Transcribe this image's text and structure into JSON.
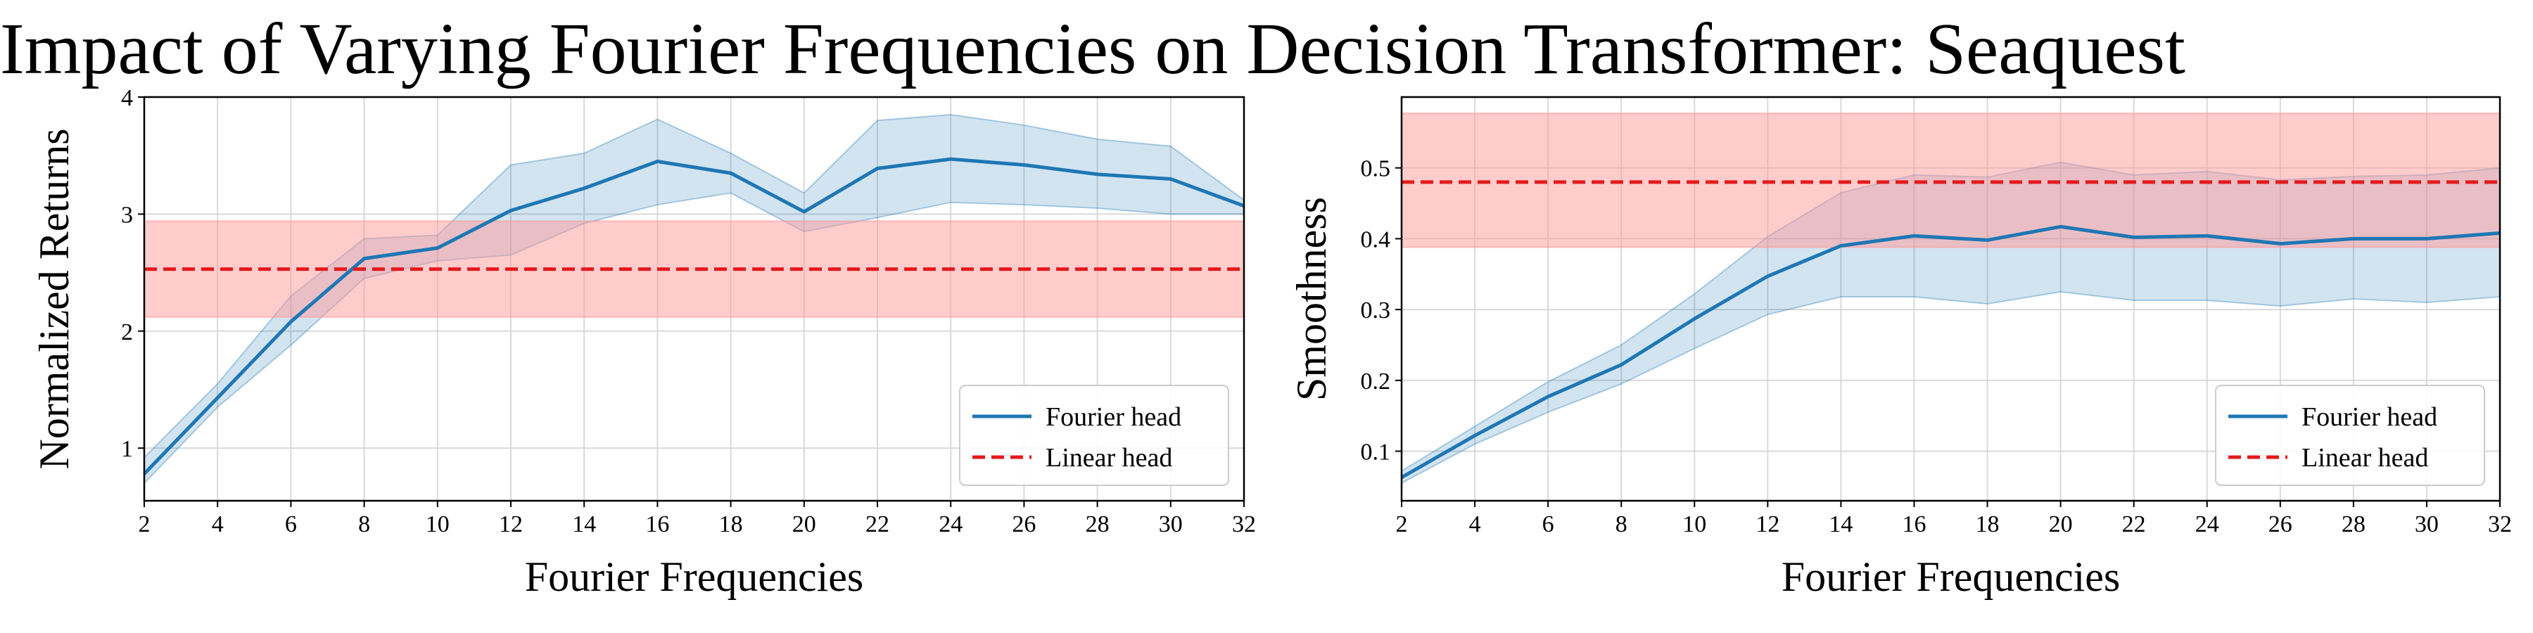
{
  "title": "Impact of Varying Fourier Frequencies on Decision Transformer: Seaquest",
  "colors": {
    "fourier": "#1f77b4",
    "fourier_band": "#1f77b4",
    "linear": "#e31a1c",
    "linear_band": "#ff9999",
    "grid": "#d9d9d9"
  },
  "chart_data": [
    {
      "type": "line",
      "xlabel": "Fourier Frequencies",
      "ylabel": "Normalized Returns",
      "xlim": [
        2,
        32
      ],
      "ylim": [
        0.55,
        4.0
      ],
      "xticks": [
        2,
        4,
        6,
        8,
        10,
        12,
        14,
        16,
        18,
        20,
        22,
        24,
        26,
        28,
        30,
        32
      ],
      "yticks": [
        1,
        2,
        3,
        4
      ],
      "grid": true,
      "legend_position": "lower-right",
      "series": [
        {
          "name": "Fourier head",
          "style": "solid",
          "x": [
            2,
            4,
            6,
            8,
            10,
            12,
            14,
            16,
            18,
            20,
            22,
            24,
            26,
            28,
            30,
            32
          ],
          "y": [
            0.78,
            1.43,
            2.08,
            2.62,
            2.71,
            3.03,
            3.22,
            3.45,
            3.35,
            3.02,
            3.39,
            3.47,
            3.42,
            3.34,
            3.3,
            3.07
          ],
          "lower": [
            0.7,
            1.35,
            1.88,
            2.45,
            2.6,
            2.65,
            2.92,
            3.08,
            3.18,
            2.85,
            2.97,
            3.1,
            3.08,
            3.05,
            3.0,
            3.0
          ],
          "upper": [
            0.92,
            1.55,
            2.3,
            2.79,
            2.82,
            3.42,
            3.52,
            3.81,
            3.52,
            3.18,
            3.8,
            3.85,
            3.76,
            3.64,
            3.58,
            3.12
          ]
        },
        {
          "name": "Linear head",
          "style": "dashed",
          "x": [
            2,
            32
          ],
          "y": [
            2.53,
            2.53
          ],
          "lower": [
            2.12,
            2.12
          ],
          "upper": [
            2.94,
            2.94
          ]
        }
      ]
    },
    {
      "type": "line",
      "xlabel": "Fourier Frequencies",
      "ylabel": "Smoothness",
      "xlim": [
        2,
        32
      ],
      "ylim": [
        0.03,
        0.6
      ],
      "xticks": [
        2,
        4,
        6,
        8,
        10,
        12,
        14,
        16,
        18,
        20,
        22,
        24,
        26,
        28,
        30,
        32
      ],
      "yticks": [
        0.1,
        0.2,
        0.3,
        0.4,
        0.5
      ],
      "grid": true,
      "legend_position": "lower-right",
      "series": [
        {
          "name": "Fourier head",
          "style": "solid",
          "x": [
            2,
            4,
            6,
            8,
            10,
            12,
            14,
            16,
            18,
            20,
            22,
            24,
            26,
            28,
            30,
            32
          ],
          "y": [
            0.063,
            0.122,
            0.177,
            0.222,
            0.287,
            0.347,
            0.39,
            0.404,
            0.398,
            0.417,
            0.402,
            0.404,
            0.393,
            0.4,
            0.4,
            0.408
          ],
          "lower": [
            0.055,
            0.11,
            0.155,
            0.195,
            0.245,
            0.293,
            0.318,
            0.318,
            0.308,
            0.325,
            0.313,
            0.313,
            0.305,
            0.315,
            0.31,
            0.318
          ],
          "upper": [
            0.072,
            0.135,
            0.198,
            0.25,
            0.322,
            0.403,
            0.465,
            0.49,
            0.487,
            0.508,
            0.49,
            0.495,
            0.483,
            0.488,
            0.49,
            0.5
          ]
        },
        {
          "name": "Linear head",
          "style": "dashed",
          "x": [
            2,
            32
          ],
          "y": [
            0.48,
            0.48
          ],
          "lower": [
            0.388,
            0.388
          ],
          "upper": [
            0.577,
            0.577
          ]
        }
      ]
    }
  ]
}
